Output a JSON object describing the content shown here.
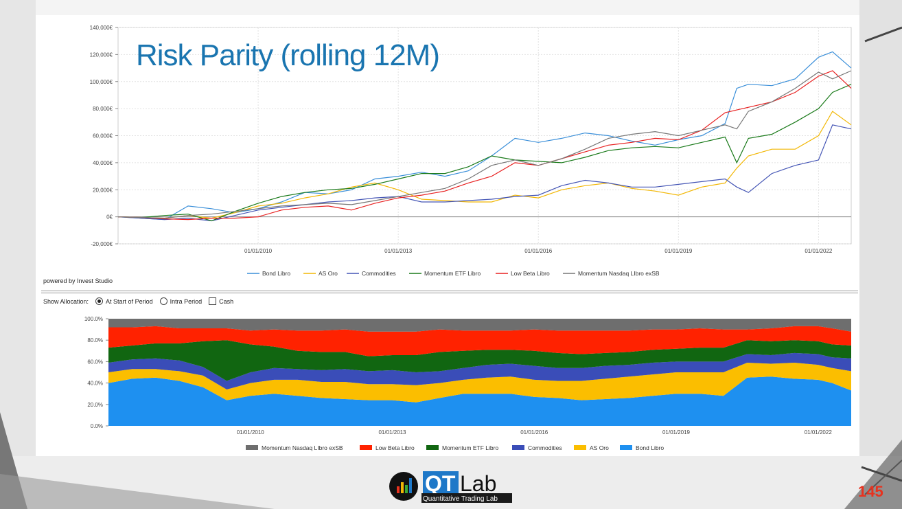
{
  "slide": {
    "title": "Risk Parity (rolling 12M)",
    "page_number": "145",
    "powered_by": "powered by Invest Studio"
  },
  "allocation_controls": {
    "label": "Show Allocation:",
    "options": [
      {
        "label": "At Start of Period",
        "selected": true
      },
      {
        "label": "Intra Period",
        "selected": false
      }
    ],
    "cash_label": "Cash",
    "cash_checked": false
  },
  "logo": {
    "text_qt": "QT",
    "text_lab": "Lab",
    "subtitle": "Quantitative Trading Lab"
  },
  "chart_data": [
    {
      "type": "line",
      "title": "",
      "ylim": [
        -20000,
        140000
      ],
      "yticks": [
        "-20,000€",
        "0€",
        "20,000€",
        "40,000€",
        "60,000€",
        "80,000€",
        "100,000€",
        "120,000€",
        "140,000€"
      ],
      "ytick_values": [
        -20000,
        0,
        20000,
        40000,
        60000,
        80000,
        100000,
        120000,
        140000
      ],
      "xticks": [
        "01/01/2010",
        "01/01/2013",
        "01/01/2016",
        "01/01/2019",
        "01/01/2022"
      ],
      "xtick_values": [
        2010,
        2013,
        2016,
        2019,
        2022
      ],
      "xlim": [
        2007.0,
        2022.7
      ],
      "grid": true,
      "legend_position": "bottom",
      "x": [
        2007.0,
        2007.5,
        2008.0,
        2008.5,
        2009.0,
        2009.5,
        2010.0,
        2010.5,
        2011.0,
        2011.5,
        2012.0,
        2012.5,
        2013.0,
        2013.5,
        2014.0,
        2014.5,
        2015.0,
        2015.5,
        2016.0,
        2016.5,
        2017.0,
        2017.5,
        2018.0,
        2018.5,
        2019.0,
        2019.5,
        2020.0,
        2020.25,
        2020.5,
        2021.0,
        2021.5,
        2022.0,
        2022.3,
        2022.7
      ],
      "series": [
        {
          "name": "Bond Libro",
          "color": "#3a8fd9",
          "values": [
            0,
            -1000,
            -2000,
            8000,
            6000,
            3000,
            6000,
            11000,
            18000,
            17000,
            20000,
            28000,
            30000,
            33000,
            30000,
            34000,
            45000,
            58000,
            55000,
            58000,
            62000,
            60000,
            56000,
            53000,
            57000,
            60000,
            69000,
            95000,
            98000,
            97000,
            102000,
            118000,
            122000,
            110000
          ]
        },
        {
          "name": "AS Oro",
          "color": "#f2b705",
          "values": [
            0,
            -500,
            -1000,
            1000,
            -1000,
            3000,
            8000,
            10000,
            14000,
            17000,
            22000,
            25000,
            20000,
            13000,
            12000,
            11000,
            11000,
            16000,
            14000,
            20000,
            23000,
            25000,
            21000,
            19000,
            16000,
            22000,
            25000,
            36000,
            45000,
            50000,
            50000,
            60000,
            78000,
            68000
          ]
        },
        {
          "name": "Commodities",
          "color": "#4455b5",
          "values": [
            0,
            -1000,
            -2000,
            -1000,
            -3000,
            1000,
            5000,
            7000,
            9000,
            11000,
            12000,
            14000,
            15000,
            11000,
            11000,
            12000,
            13000,
            15000,
            16000,
            23000,
            27000,
            25000,
            22000,
            22000,
            24000,
            26000,
            28000,
            22000,
            18000,
            32000,
            38000,
            42000,
            68000,
            65000
          ]
        },
        {
          "name": "Momentum ETF Libro",
          "color": "#1a7a1a",
          "values": [
            0,
            -500,
            1000,
            2000,
            -3000,
            4000,
            10000,
            15000,
            18000,
            20000,
            21000,
            24000,
            28000,
            32000,
            32000,
            37000,
            45000,
            42000,
            41000,
            40000,
            44000,
            49000,
            51000,
            52000,
            51000,
            55000,
            59000,
            40000,
            58000,
            61000,
            70000,
            80000,
            92000,
            98000
          ]
        },
        {
          "name": "Low Beta Libro",
          "color": "#e82020",
          "values": [
            0,
            -500,
            -1500,
            -2000,
            -1000,
            -1000,
            0,
            5000,
            7000,
            8000,
            5000,
            10000,
            14000,
            16000,
            19000,
            25000,
            30000,
            40000,
            38000,
            43000,
            48000,
            53000,
            55000,
            58000,
            57000,
            64000,
            77000,
            79000,
            81000,
            85000,
            92000,
            104000,
            108000,
            95000
          ]
        },
        {
          "name": "Momentum Nasdaq LIbro exSB",
          "color": "#777777",
          "values": [
            0,
            -500,
            -1000,
            1000,
            2000,
            4000,
            6000,
            8000,
            9000,
            10000,
            9000,
            12000,
            15000,
            18000,
            21000,
            28000,
            38000,
            42000,
            38000,
            43000,
            50000,
            58000,
            61000,
            63000,
            60000,
            64000,
            68000,
            65000,
            78000,
            85000,
            95000,
            107000,
            102000,
            108000
          ]
        }
      ]
    },
    {
      "type": "area",
      "stacked": true,
      "title": "",
      "ylim": [
        0,
        100
      ],
      "yticks": [
        "0.0%",
        "20.0%",
        "40.0%",
        "60.0%",
        "80.0%",
        "100.0%"
      ],
      "ytick_values": [
        0,
        20,
        40,
        60,
        80,
        100
      ],
      "xticks": [
        "01/01/2010",
        "01/01/2013",
        "01/01/2016",
        "01/01/2019",
        "01/01/2022"
      ],
      "xtick_values": [
        2010,
        2013,
        2016,
        2019,
        2022
      ],
      "xlim": [
        2007.0,
        2022.7
      ],
      "legend_position": "bottom",
      "legend_order": [
        "Momentum Nasdaq LIbro exSB",
        "Low Beta Libro",
        "Momentum ETF Libro",
        "Commodities",
        "AS Oro",
        "Bond Libro"
      ],
      "x": [
        2007.0,
        2007.5,
        2008.0,
        2008.5,
        2009.0,
        2009.5,
        2010.0,
        2010.5,
        2011.0,
        2011.5,
        2012.0,
        2012.5,
        2013.0,
        2013.5,
        2014.0,
        2014.5,
        2015.0,
        2015.5,
        2016.0,
        2016.5,
        2017.0,
        2017.5,
        2018.0,
        2018.5,
        2019.0,
        2019.5,
        2020.0,
        2020.5,
        2021.0,
        2021.5,
        2022.0,
        2022.3,
        2022.7
      ],
      "series": [
        {
          "name": "Bond Libro",
          "color": "#1e90f0",
          "values": [
            40,
            44,
            45,
            42,
            36,
            24,
            28,
            30,
            28,
            26,
            25,
            24,
            24,
            22,
            26,
            30,
            30,
            30,
            27,
            26,
            24,
            25,
            26,
            28,
            30,
            30,
            28,
            45,
            46,
            44,
            43,
            40,
            33
          ]
        },
        {
          "name": "AS Oro",
          "color": "#fbbe00",
          "values": [
            10,
            9,
            8,
            9,
            11,
            10,
            12,
            13,
            15,
            15,
            16,
            15,
            15,
            16,
            14,
            13,
            15,
            16,
            16,
            16,
            18,
            19,
            20,
            20,
            20,
            20,
            22,
            14,
            12,
            15,
            14,
            14,
            18
          ]
        },
        {
          "name": "Commodities",
          "color": "#3a4db8",
          "values": [
            9,
            9,
            10,
            10,
            8,
            8,
            10,
            11,
            10,
            11,
            12,
            12,
            13,
            12,
            11,
            11,
            12,
            12,
            13,
            12,
            12,
            12,
            11,
            11,
            10,
            10,
            10,
            8,
            8,
            9,
            10,
            10,
            12
          ]
        },
        {
          "name": "Momentum ETF Libro",
          "color": "#116611",
          "values": [
            14,
            13,
            14,
            16,
            24,
            38,
            26,
            20,
            17,
            17,
            16,
            14,
            14,
            16,
            18,
            16,
            14,
            13,
            14,
            14,
            13,
            12,
            12,
            12,
            12,
            13,
            13,
            13,
            13,
            12,
            12,
            12,
            12
          ]
        },
        {
          "name": "Low Beta Libro",
          "color": "#ff2200",
          "values": [
            19,
            17,
            16,
            14,
            12,
            11,
            13,
            16,
            19,
            20,
            21,
            23,
            22,
            22,
            21,
            19,
            18,
            18,
            20,
            21,
            22,
            21,
            20,
            19,
            18,
            18,
            17,
            10,
            12,
            13,
            14,
            15,
            13
          ]
        },
        {
          "name": "Momentum Nasdaq LIbro exSB",
          "color": "#6e6e6e",
          "values": [
            8,
            8,
            7,
            9,
            9,
            9,
            11,
            10,
            11,
            11,
            10,
            12,
            12,
            12,
            10,
            11,
            11,
            11,
            10,
            11,
            11,
            11,
            11,
            10,
            10,
            9,
            10,
            10,
            9,
            7,
            7,
            9,
            12
          ]
        }
      ]
    }
  ]
}
